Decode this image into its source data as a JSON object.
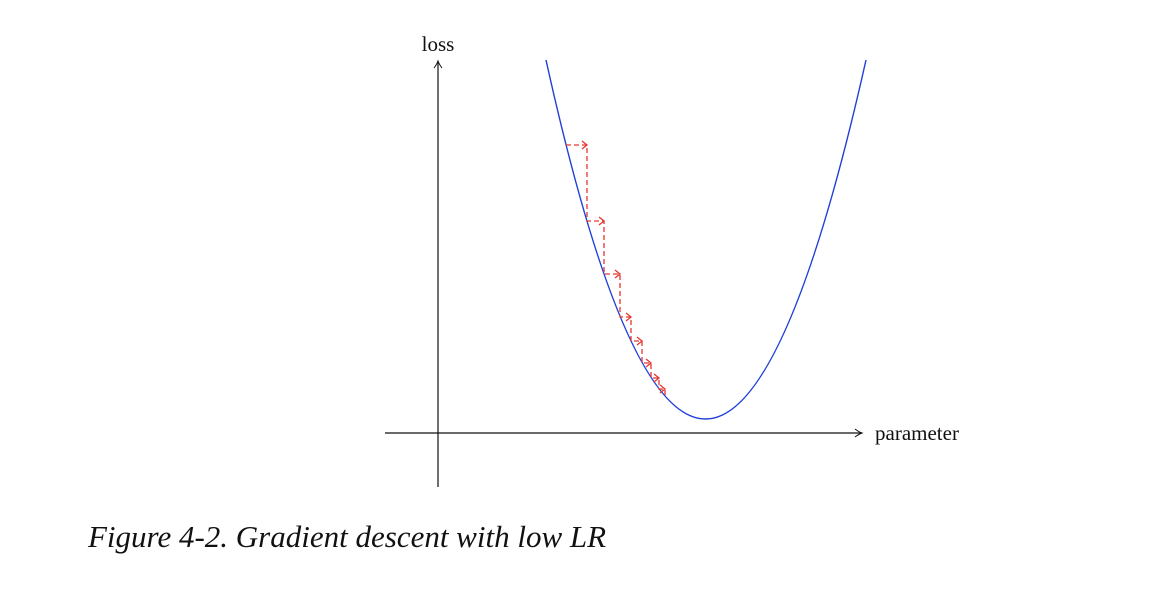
{
  "axes": {
    "y_label": "loss",
    "x_label": "parameter"
  },
  "caption": "Figure 4-2. Gradient descent with low LR"
}
